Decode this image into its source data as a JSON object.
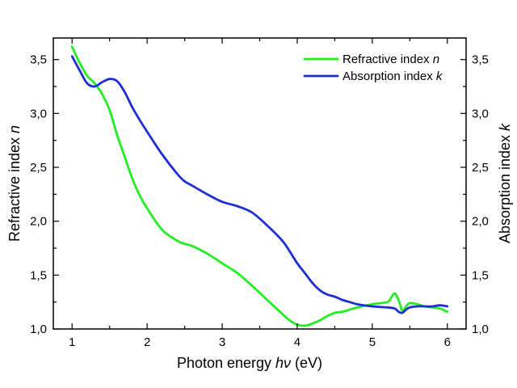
{
  "chart_data": {
    "type": "line",
    "xlabel_prefix": "Photon energy ",
    "xlabel_symbol": "hν",
    "xlabel_suffix": " (eV)",
    "ylabel_left_prefix": "Refractive index ",
    "ylabel_left_symbol": "n",
    "ylabel_right_prefix": "Absorption index  ",
    "ylabel_right_symbol": "k",
    "xlim": [
      0.75,
      6.25
    ],
    "ylim": [
      1.0,
      3.7
    ],
    "x_ticks": [
      1,
      2,
      3,
      4,
      5,
      6
    ],
    "x_tick_labels": [
      "1",
      "2",
      "3",
      "4",
      "5",
      "6"
    ],
    "y_ticks": [
      1.0,
      1.5,
      2.0,
      2.5,
      3.0,
      3.5
    ],
    "y_tick_labels": [
      "1,0",
      "1,5",
      "2,0",
      "2,5",
      "3,0",
      "3,5"
    ],
    "legend_position": "top-right",
    "series": [
      {
        "name": "n",
        "legend_prefix": "Refractive index ",
        "legend_symbol": "n",
        "color": "#22ee22",
        "x": [
          1.0,
          1.1,
          1.2,
          1.3,
          1.4,
          1.5,
          1.6,
          1.7,
          1.8,
          1.9,
          2.0,
          2.2,
          2.4,
          2.5,
          2.6,
          2.8,
          3.0,
          3.2,
          3.4,
          3.6,
          3.8,
          3.9,
          4.0,
          4.1,
          4.2,
          4.3,
          4.4,
          4.5,
          4.6,
          4.7,
          4.8,
          5.0,
          5.2,
          5.25,
          5.3,
          5.35,
          5.4,
          5.45,
          5.5,
          5.6,
          5.7,
          5.8,
          5.9,
          6.0
        ],
        "values": [
          3.62,
          3.47,
          3.35,
          3.28,
          3.18,
          3.03,
          2.8,
          2.6,
          2.4,
          2.24,
          2.12,
          1.92,
          1.82,
          1.79,
          1.77,
          1.7,
          1.61,
          1.52,
          1.4,
          1.27,
          1.14,
          1.08,
          1.04,
          1.03,
          1.05,
          1.08,
          1.12,
          1.15,
          1.16,
          1.18,
          1.2,
          1.23,
          1.25,
          1.29,
          1.33,
          1.27,
          1.17,
          1.21,
          1.24,
          1.23,
          1.21,
          1.2,
          1.19,
          1.16
        ]
      },
      {
        "name": "k",
        "legend_prefix": "Absorption index ",
        "legend_symbol": "k",
        "color": "#1e2ed6",
        "x": [
          1.0,
          1.1,
          1.2,
          1.3,
          1.4,
          1.5,
          1.6,
          1.7,
          1.8,
          1.9,
          2.0,
          2.2,
          2.4,
          2.5,
          2.6,
          2.8,
          3.0,
          3.2,
          3.4,
          3.6,
          3.8,
          3.9,
          4.0,
          4.1,
          4.2,
          4.3,
          4.4,
          4.5,
          4.6,
          4.7,
          4.8,
          5.0,
          5.2,
          5.3,
          5.35,
          5.4,
          5.45,
          5.5,
          5.6,
          5.7,
          5.8,
          5.9,
          6.0
        ],
        "values": [
          3.53,
          3.4,
          3.28,
          3.25,
          3.29,
          3.32,
          3.3,
          3.2,
          3.06,
          2.94,
          2.83,
          2.62,
          2.44,
          2.37,
          2.33,
          2.25,
          2.18,
          2.14,
          2.08,
          1.96,
          1.82,
          1.72,
          1.61,
          1.52,
          1.43,
          1.36,
          1.32,
          1.3,
          1.27,
          1.25,
          1.23,
          1.21,
          1.2,
          1.19,
          1.16,
          1.15,
          1.18,
          1.2,
          1.21,
          1.21,
          1.21,
          1.22,
          1.21
        ]
      }
    ]
  }
}
